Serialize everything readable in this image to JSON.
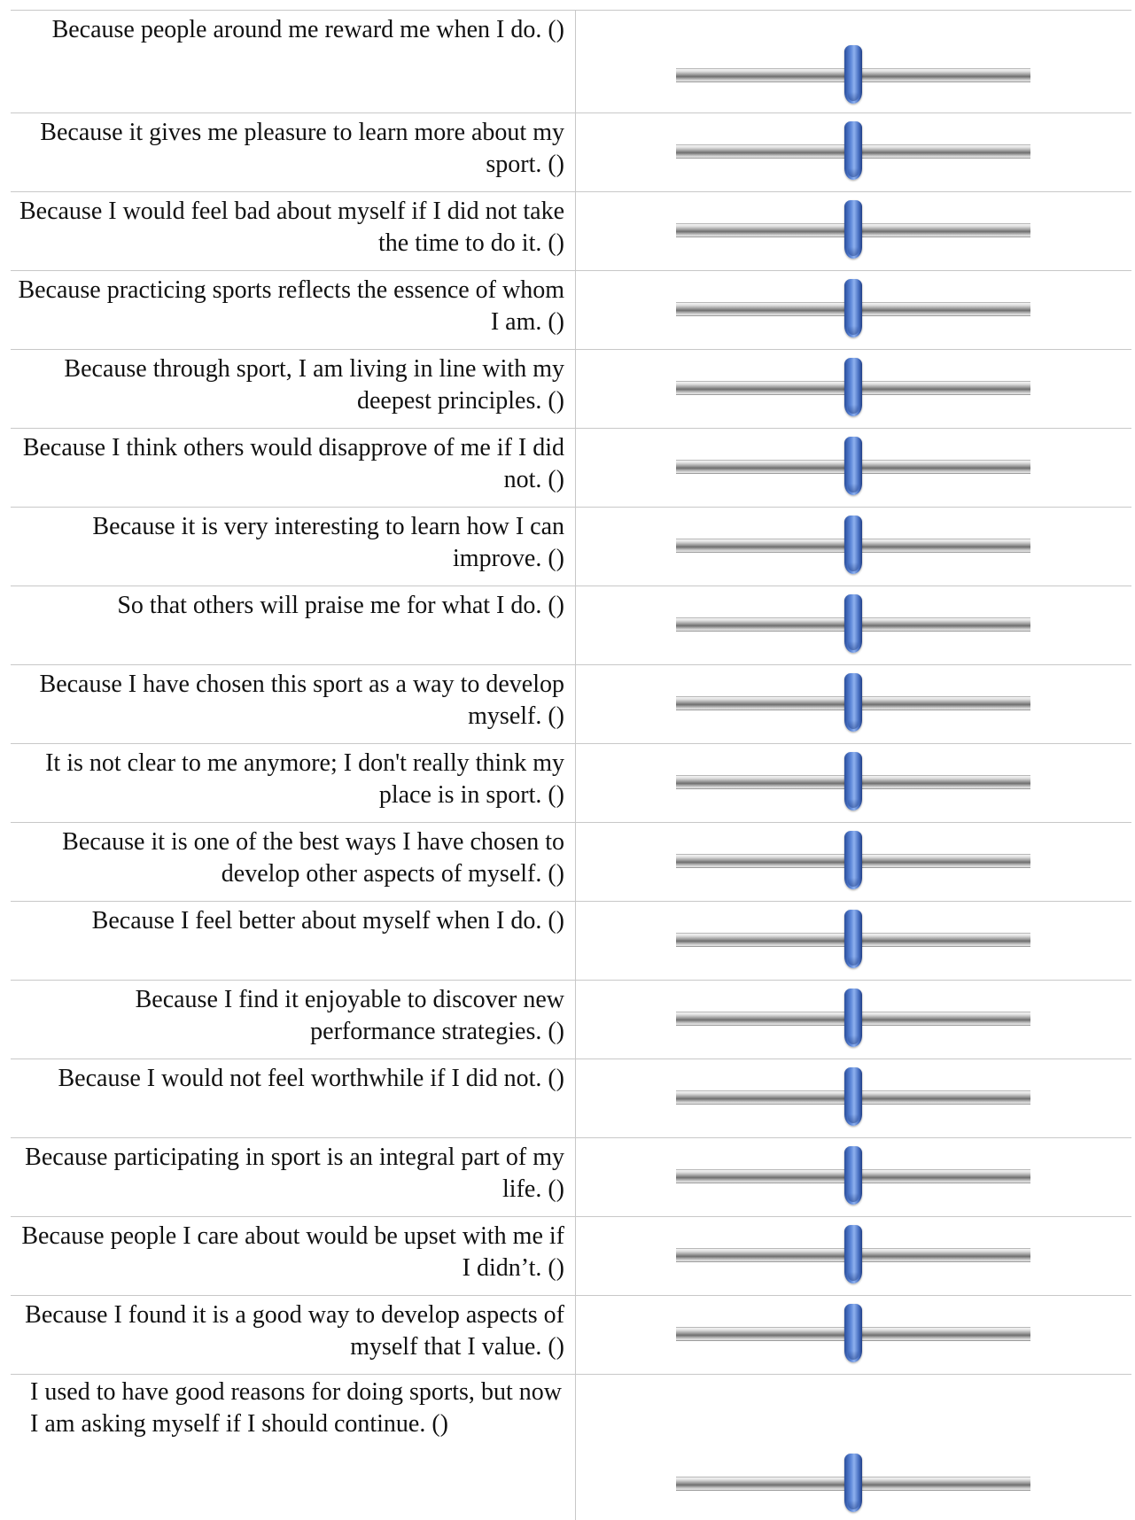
{
  "items": [
    {
      "text": "Because people around me reward me when I do. ()",
      "value": 0.5
    },
    {
      "text": "Because it gives me pleasure to learn more about my sport. ()",
      "value": 0.5
    },
    {
      "text": "Because I would feel bad about myself if I did not take the time to do it. ()",
      "value": 0.5
    },
    {
      "text": "Because practicing sports reflects the essence of whom I am. ()",
      "value": 0.5
    },
    {
      "text": "Because through sport, I am living in line with my deepest principles. ()",
      "value": 0.5
    },
    {
      "text": "Because I think others would disapprove of me if I did not. ()",
      "value": 0.5
    },
    {
      "text": "Because it is very interesting to learn how I can improve. ()",
      "value": 0.5
    },
    {
      "text": "So that others will praise me for what I do. ()",
      "value": 0.5
    },
    {
      "text": "Because I have chosen this sport as a way to develop myself. ()",
      "value": 0.5
    },
    {
      "text": "It is not clear to me anymore; I don't really think my place is in sport. ()",
      "value": 0.5
    },
    {
      "text": "Because it is one of the best ways I have chosen to develop other aspects of myself. ()",
      "value": 0.5
    },
    {
      "text": "Because I feel better about myself when I do. ()",
      "value": 0.5
    },
    {
      "text": "Because I find it enjoyable to discover new performance strategies. ()",
      "value": 0.5
    },
    {
      "text": "Because I would not feel worthwhile if I did not. ()",
      "value": 0.5
    },
    {
      "text": "Because participating in sport is an integral part of my life. ()",
      "value": 0.5
    },
    {
      "text": "Because people I care about would be upset with me if I didn’t. ()",
      "value": 0.5
    },
    {
      "text": "Because I found it is a good way to develop aspects of myself that I value. ()",
      "value": 0.5
    },
    {
      "text": "I used to have good reasons for doing sports, but now I am asking myself if I should continue. ()",
      "value": 0.5
    }
  ]
}
